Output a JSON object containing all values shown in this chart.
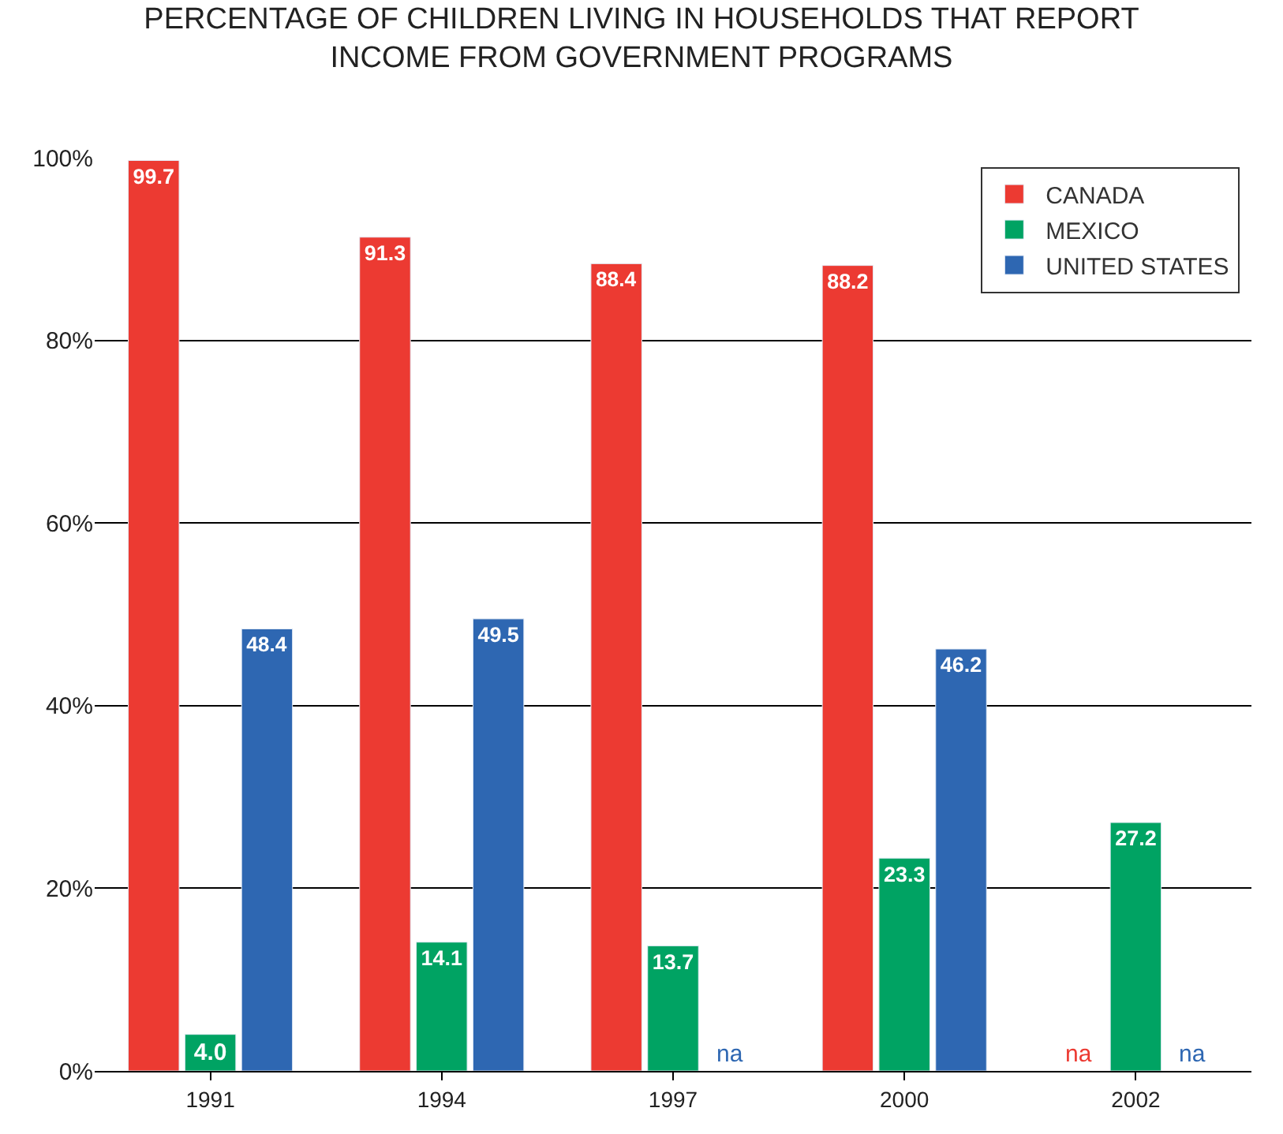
{
  "chart_data": {
    "type": "bar",
    "title": "PERCENTAGE OF CHILDREN LIVING IN HOUSEHOLDS THAT REPORT\nINCOME FROM GOVERNMENT PROGRAMS",
    "categories": [
      "1991",
      "1994",
      "1997",
      "2000",
      "2002"
    ],
    "series": [
      {
        "name": "CANADA",
        "color": "#ec3a32",
        "values": [
          99.7,
          91.3,
          88.4,
          88.2,
          null
        ],
        "value_labels": [
          "99.7",
          "91.3",
          "88.4",
          "88.2",
          "na"
        ]
      },
      {
        "name": "MEXICO",
        "color": "#00a363",
        "values": [
          4.0,
          14.1,
          13.7,
          23.3,
          27.2
        ],
        "value_labels": [
          "4.0",
          "14.1",
          "13.7",
          "23.3",
          "27.2"
        ]
      },
      {
        "name": "UNITED STATES",
        "color": "#2e67b2",
        "values": [
          48.4,
          49.5,
          null,
          46.2,
          null
        ],
        "value_labels": [
          "48.4",
          "49.5",
          "na",
          "46.2",
          "na"
        ]
      }
    ],
    "ylim": [
      0,
      100
    ],
    "yticks": [
      {
        "value": 0,
        "label": "0%"
      },
      {
        "value": 20,
        "label": "20%"
      },
      {
        "value": 40,
        "label": "40%"
      },
      {
        "value": 60,
        "label": "60%"
      },
      {
        "value": 80,
        "label": "80%"
      },
      {
        "value": 100,
        "label": "100%"
      }
    ],
    "grid": "y",
    "legend": "top right"
  }
}
